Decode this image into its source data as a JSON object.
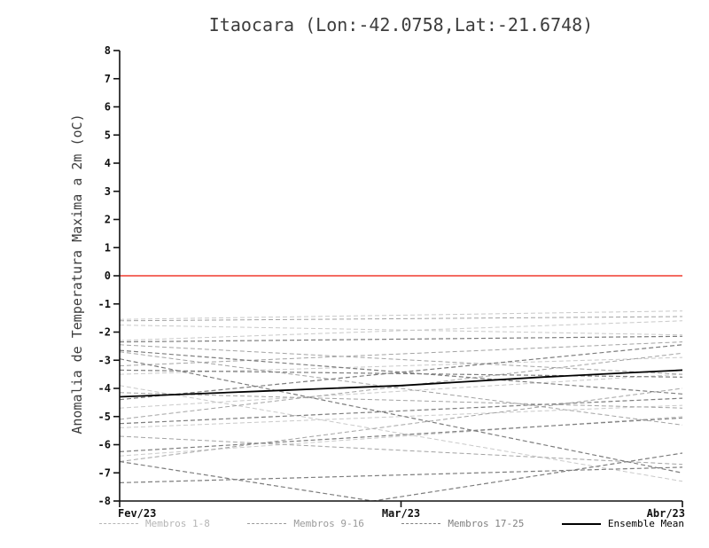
{
  "chart_data": {
    "type": "line",
    "title": "Itaocara (Lon:-42.0758,Lat:-21.6748)",
    "ylabel": "Anomalia de Temperatura Maxima a 2m (oC)",
    "xlabel": "",
    "ylim": [
      -8,
      8
    ],
    "y_ticks": [
      8,
      7,
      6,
      5,
      4,
      3,
      2,
      1,
      0,
      -1,
      -2,
      -3,
      -4,
      -5,
      -6,
      -7,
      -8
    ],
    "x_ticks": [
      "Fev/23",
      "Mar/23",
      "Abr/23"
    ],
    "x_range": [
      0,
      1
    ],
    "grid": false,
    "zero_line": {
      "y": 0,
      "color": "#f03a2d"
    },
    "groups": [
      {
        "name": "Membros 1-8",
        "color": "#c9c9c9",
        "style": "dashed",
        "width": 1
      },
      {
        "name": "Membros 9-16",
        "color": "#a3a3a3",
        "style": "dashed",
        "width": 1
      },
      {
        "name": "Membros 17-25",
        "color": "#7d7d7d",
        "style": "dashed",
        "width": 1.2
      }
    ],
    "members": [
      {
        "group": 0,
        "points": [
          [
            0,
            -1.55
          ],
          [
            1,
            -1.25
          ]
        ]
      },
      {
        "group": 0,
        "points": [
          [
            0,
            -1.75
          ],
          [
            1,
            -2.1
          ]
        ]
      },
      {
        "group": 0,
        "points": [
          [
            0,
            -2.3
          ],
          [
            1,
            -1.6
          ]
        ]
      },
      {
        "group": 0,
        "points": [
          [
            0,
            -3.5
          ],
          [
            1,
            -2.9
          ]
        ]
      },
      {
        "group": 0,
        "points": [
          [
            0,
            -4.7
          ],
          [
            1,
            -3.5
          ]
        ]
      },
      {
        "group": 0,
        "points": [
          [
            0,
            -5.4
          ],
          [
            1,
            -4.6
          ]
        ]
      },
      {
        "group": 0,
        "points": [
          [
            0,
            -6.4
          ],
          [
            1,
            -5.0
          ]
        ]
      },
      {
        "group": 0,
        "points": [
          [
            0,
            -3.9
          ],
          [
            1,
            -7.3
          ]
        ]
      },
      {
        "group": 1,
        "points": [
          [
            0,
            -1.6
          ],
          [
            1,
            -1.45
          ]
        ]
      },
      {
        "group": 1,
        "points": [
          [
            0,
            -2.45
          ],
          [
            1,
            -3.5
          ]
        ]
      },
      {
        "group": 1,
        "points": [
          [
            0,
            -3.2
          ],
          [
            1,
            -2.35
          ]
        ]
      },
      {
        "group": 1,
        "points": [
          [
            0,
            -4.15
          ],
          [
            1,
            -4.7
          ]
        ]
      },
      {
        "group": 1,
        "points": [
          [
            0,
            -5.1
          ],
          [
            1,
            -2.75
          ]
        ]
      },
      {
        "group": 1,
        "points": [
          [
            0,
            -5.7
          ],
          [
            1,
            -6.7
          ]
        ]
      },
      {
        "group": 1,
        "points": [
          [
            0,
            -6.6
          ],
          [
            1,
            -4.0
          ]
        ]
      },
      {
        "group": 1,
        "points": [
          [
            0,
            -2.7
          ],
          [
            1,
            -5.3
          ]
        ]
      },
      {
        "group": 2,
        "points": [
          [
            0,
            -2.35
          ],
          [
            1,
            -2.15
          ]
        ]
      },
      {
        "group": 2,
        "points": [
          [
            0,
            -2.65
          ],
          [
            1,
            -4.2
          ]
        ]
      },
      {
        "group": 2,
        "points": [
          [
            0,
            -3.35
          ],
          [
            1,
            -3.6
          ]
        ]
      },
      {
        "group": 2,
        "points": [
          [
            0,
            -4.4
          ],
          [
            1,
            -2.45
          ]
        ]
      },
      {
        "group": 2,
        "points": [
          [
            0,
            -5.25
          ],
          [
            1,
            -4.35
          ]
        ]
      },
      {
        "group": 2,
        "points": [
          [
            0,
            -6.25
          ],
          [
            1,
            -5.05
          ]
        ]
      },
      {
        "group": 2,
        "points": [
          [
            0,
            -6.6
          ],
          [
            0.45,
            -8.0
          ],
          [
            1,
            -6.3
          ]
        ]
      },
      {
        "group": 2,
        "points": [
          [
            0,
            -7.35
          ],
          [
            1,
            -6.8
          ]
        ]
      },
      {
        "group": 2,
        "points": [
          [
            0,
            -2.95
          ],
          [
            1,
            -7.0
          ]
        ]
      }
    ],
    "ensemble_mean": {
      "name": "Ensemble Mean",
      "color": "#000000",
      "points": [
        [
          0,
          -4.3
        ],
        [
          0.25,
          -4.1
        ],
        [
          0.5,
          -3.9
        ],
        [
          0.75,
          -3.6
        ],
        [
          0.9,
          -3.45
        ],
        [
          1,
          -3.35
        ]
      ]
    }
  },
  "legend": {
    "items": [
      {
        "label": "Membros 1-8",
        "color": "#b5b5b5",
        "line": "dashed"
      },
      {
        "label": "Membros 9-16",
        "color": "#9a9a9a",
        "line": "dashed"
      },
      {
        "label": "Membros 17-25",
        "color": "#808080",
        "line": "dashed"
      },
      {
        "label": "Ensemble Mean",
        "color": "#000000",
        "line": "solid"
      }
    ]
  }
}
